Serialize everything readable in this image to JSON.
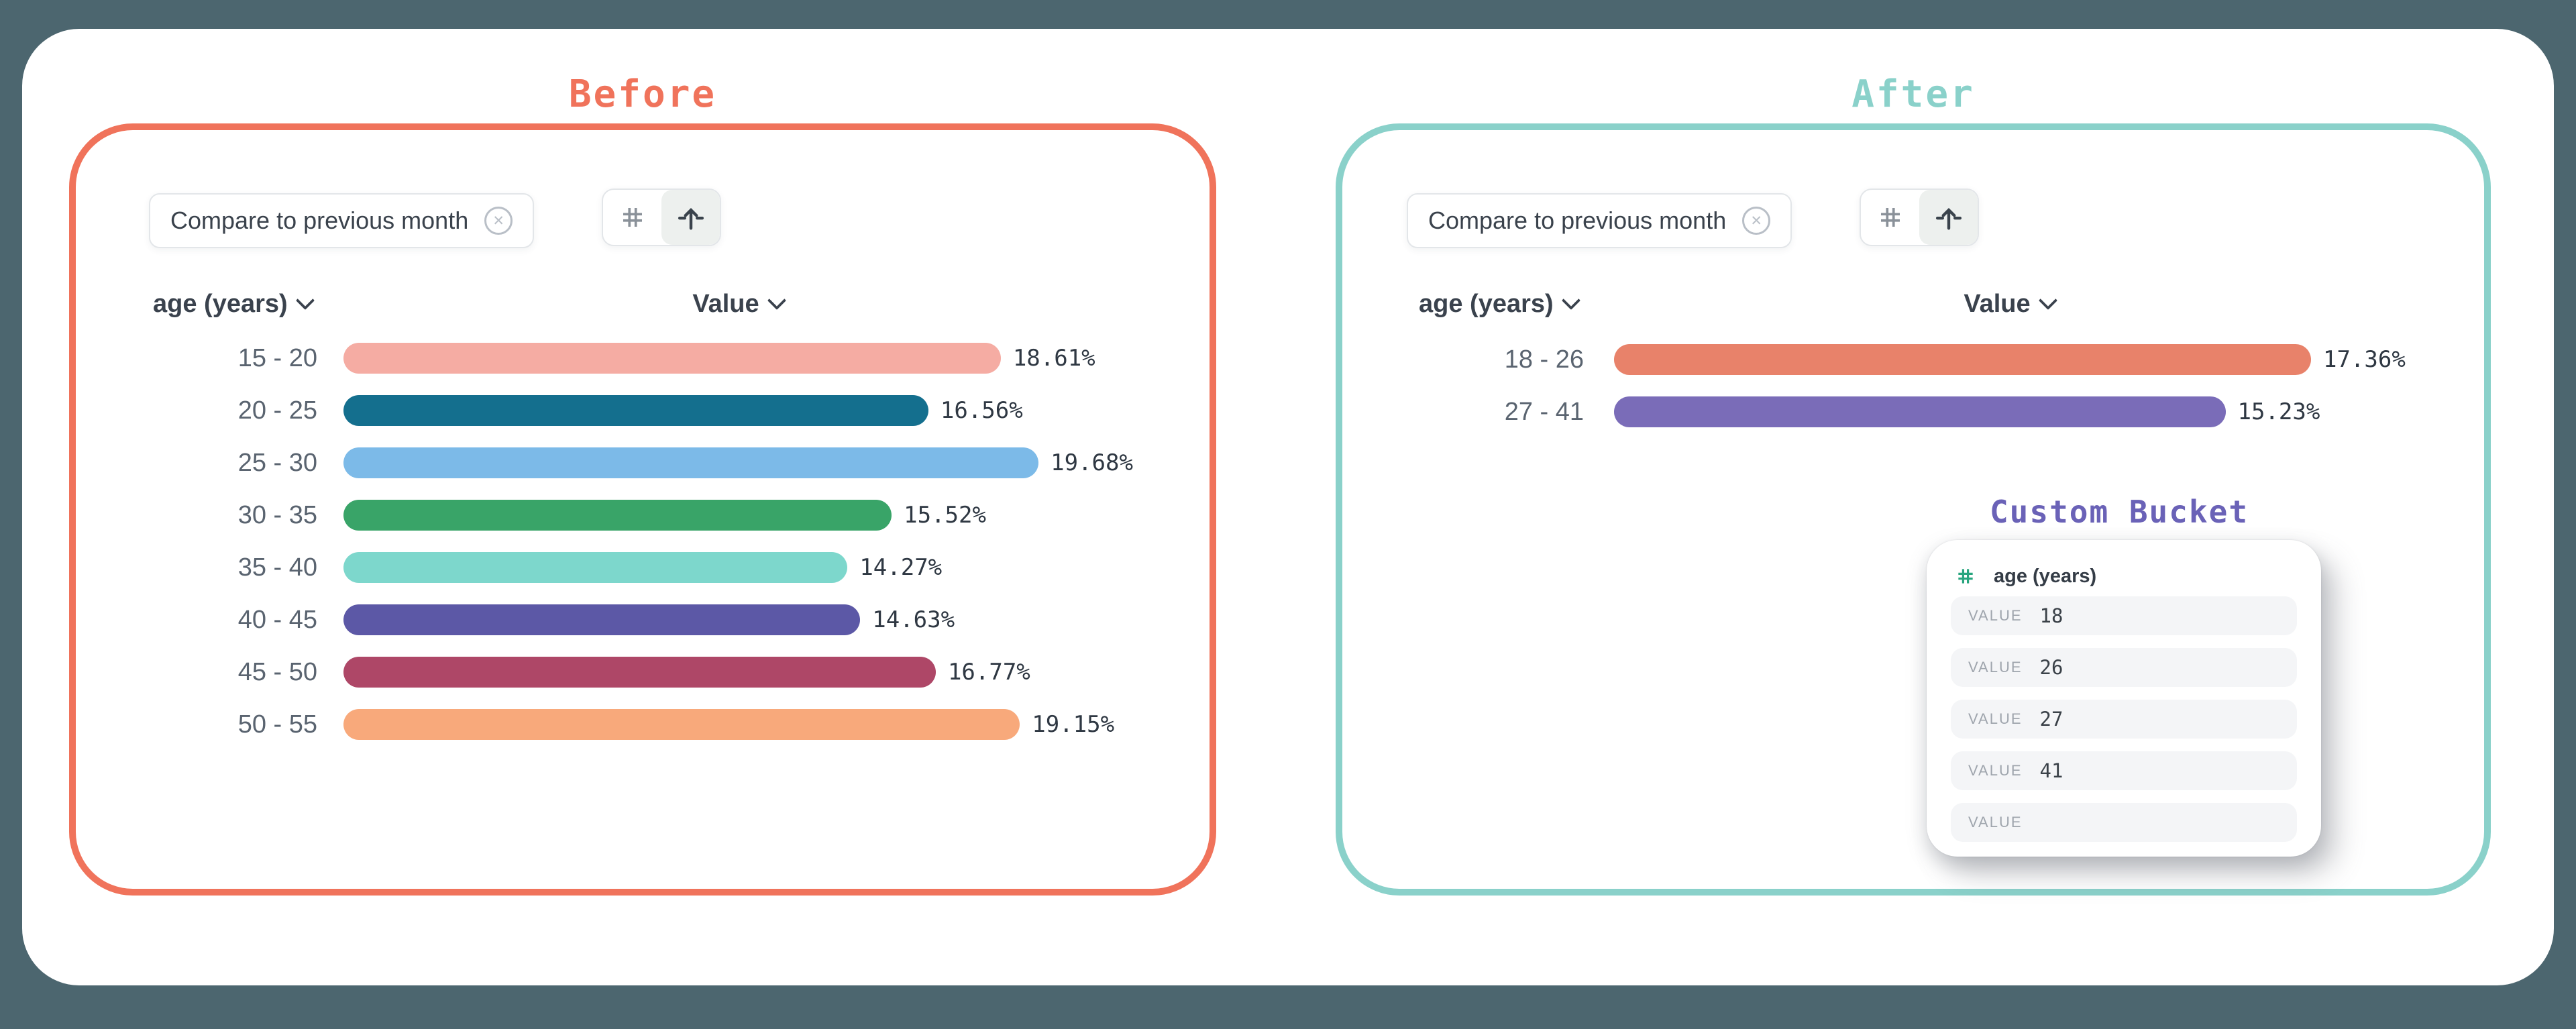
{
  "colors": {
    "page_bg": "#4C666F",
    "surface": "#FFFFFF",
    "chip_border": "#E3E6E9",
    "chip_text": "#3A424C",
    "icon_muted": "#8A9199",
    "icon_dark": "#3A434C",
    "toggle_active_bg": "#EDF0EE",
    "header_text": "#3A424D",
    "row_label": "#5A6470",
    "value_text": "#2F3843",
    "bucket_row_bg": "#F4F5F7",
    "bucket_label": "#9FA5AD",
    "hash_green": "#27A57E"
  },
  "panels": [
    {
      "title": "Before",
      "accent": "#F0735B",
      "filter_chip": {
        "label": "Compare to previous month",
        "close_icon": "circle-x-icon"
      },
      "toolbar": {
        "buttons": [
          {
            "icon": "hashtag-grid-icon",
            "active": false
          },
          {
            "icon": "arrow-up-icon",
            "active": true
          }
        ]
      },
      "columns": [
        {
          "label": "age (years)",
          "sortable": true
        },
        {
          "label": "Value",
          "sortable": true
        }
      ]
    },
    {
      "title": "After",
      "accent": "#8AD1CA",
      "filter_chip": {
        "label": "Compare to previous month",
        "close_icon": "circle-x-icon"
      },
      "toolbar": {
        "buttons": [
          {
            "icon": "hashtag-grid-icon",
            "active": false
          },
          {
            "icon": "arrow-up-icon",
            "active": true
          }
        ]
      },
      "columns": [
        {
          "label": "age (years)",
          "sortable": true
        },
        {
          "label": "Value",
          "sortable": true
        }
      ],
      "custom_bucket": {
        "title": "Custom Bucket",
        "accent": "#6A62B7",
        "field_icon": "hashtag-icon",
        "field": "age (years)",
        "entries": [
          {
            "label": "VALUE",
            "value": "18"
          },
          {
            "label": "VALUE",
            "value": "26"
          },
          {
            "label": "VALUE",
            "value": "27"
          },
          {
            "label": "VALUE",
            "value": "41"
          },
          {
            "label": "VALUE",
            "value": ""
          }
        ]
      }
    }
  ],
  "chart_data": [
    {
      "type": "bar",
      "orientation": "horizontal",
      "title": "Before",
      "columns": [
        "age (years)",
        "Value"
      ],
      "categories": [
        "15 - 20",
        "20 - 25",
        "25 - 30",
        "30 - 35",
        "35 - 40",
        "40 - 45",
        "45 - 50",
        "50 - 55"
      ],
      "values": [
        18.61,
        16.56,
        19.68,
        15.52,
        14.27,
        14.63,
        16.77,
        19.15
      ],
      "labels": [
        "18.61%",
        "16.56%",
        "19.68%",
        "15.52%",
        "14.27%",
        "14.63%",
        "16.77%",
        "19.15%"
      ],
      "colors": [
        "#F5ACA3",
        "#146F8E",
        "#7CBAE8",
        "#39A468",
        "#7DD7CC",
        "#5C58A6",
        "#AE4767",
        "#F8A97B"
      ],
      "unit": "%",
      "grid": false,
      "legend": false
    },
    {
      "type": "bar",
      "orientation": "horizontal",
      "title": "After",
      "columns": [
        "age (years)",
        "Value"
      ],
      "categories": [
        "18 - 26",
        "27 - 41"
      ],
      "values": [
        17.36,
        15.23
      ],
      "labels": [
        "17.36%",
        "15.23%"
      ],
      "colors": [
        "#E8826A",
        "#7A6CB8"
      ],
      "unit": "%",
      "grid": false,
      "legend": false
    }
  ]
}
